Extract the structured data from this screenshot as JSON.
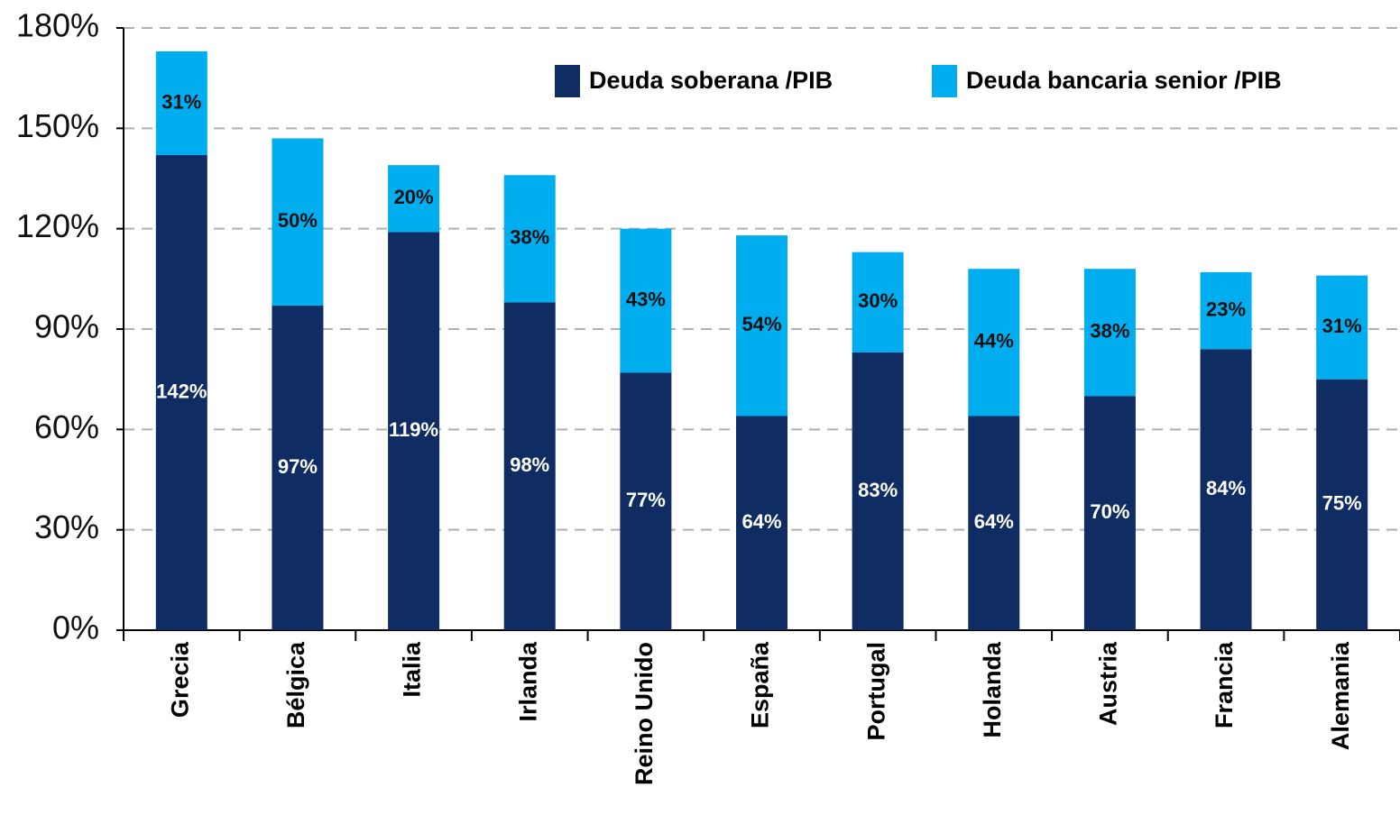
{
  "chart_data": {
    "type": "stacked_bar",
    "categories": [
      "Grecia",
      "Bélgica",
      "Italia",
      "Irlanda",
      "Reino Unido",
      "España",
      "Portugal",
      "Holanda",
      "Austria",
      "Francia",
      "Alemania"
    ],
    "series": [
      {
        "name": "Deuda soberana /PIB",
        "color": "#0f2d63",
        "label_color": "#ffffff",
        "values": [
          142,
          97,
          119,
          98,
          77,
          64,
          83,
          64,
          70,
          84,
          75
        ],
        "value_labels": [
          "142%",
          "97%",
          "119%",
          "98%",
          "77%",
          "64%",
          "83%",
          "64%",
          "70%",
          "84%",
          "75%"
        ]
      },
      {
        "name": "Deuda bancaria senior /PIB",
        "color": "#00adef",
        "label_color": "#111111",
        "values": [
          31,
          50,
          20,
          38,
          43,
          54,
          30,
          44,
          38,
          23,
          31
        ],
        "value_labels": [
          "31%",
          "50%",
          "20%",
          "38%",
          "43%",
          "54%",
          "30%",
          "44%",
          "38%",
          "23%",
          "31%"
        ]
      }
    ],
    "ylim": [
      0,
      180
    ],
    "yticks": [
      {
        "value": 0,
        "label": "0%"
      },
      {
        "value": 30,
        "label": "30%"
      },
      {
        "value": 60,
        "label": "60%"
      },
      {
        "value": 90,
        "label": "90%"
      },
      {
        "value": 120,
        "label": "120%"
      },
      {
        "value": 150,
        "label": "150%"
      },
      {
        "value": 180,
        "label": "180%"
      }
    ],
    "grid": true,
    "legend": "top-right"
  }
}
